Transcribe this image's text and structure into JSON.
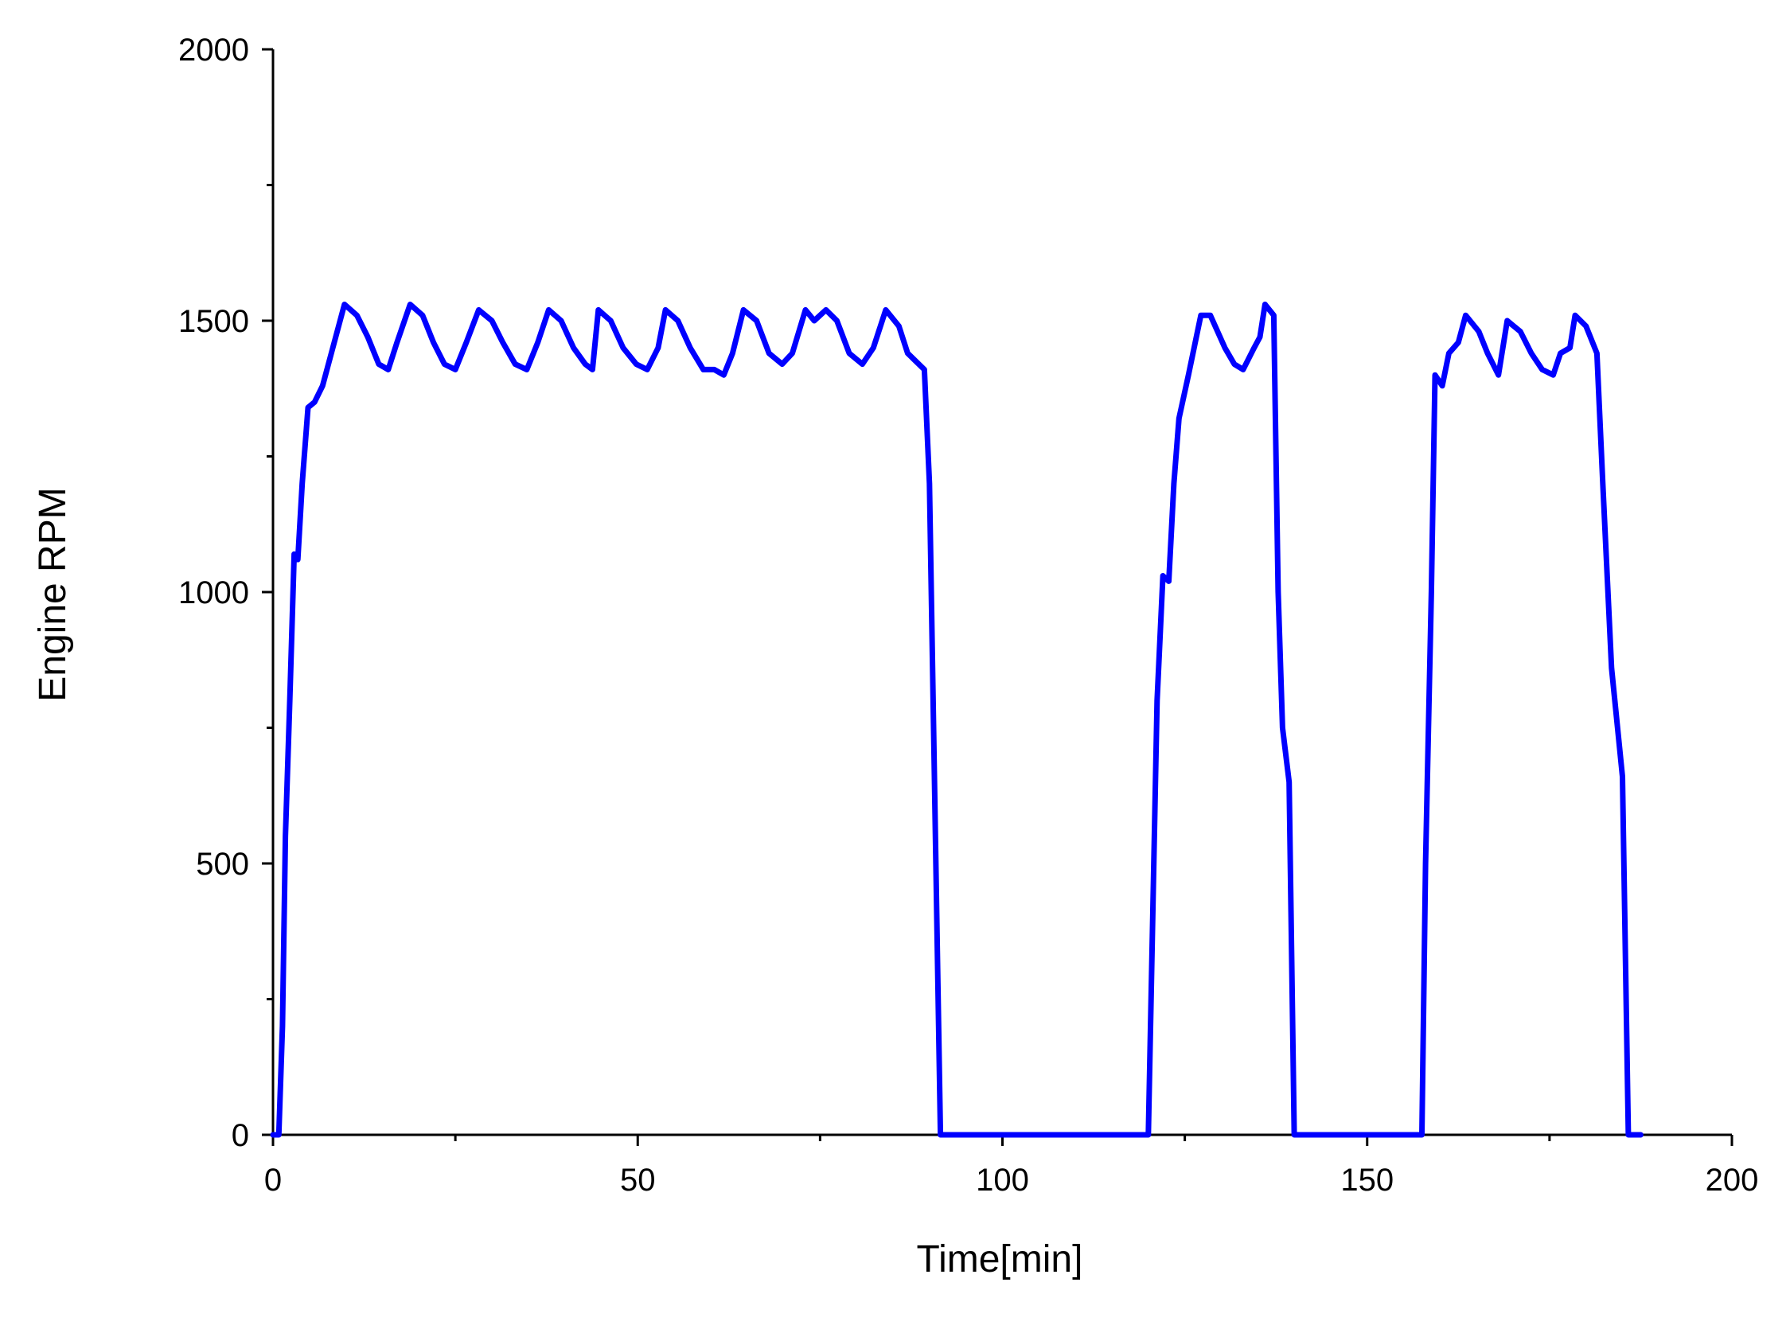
{
  "chart_data": {
    "type": "line",
    "title": "",
    "xlabel": "Time[min]",
    "ylabel": "Engine RPM",
    "xlim": [
      0,
      200
    ],
    "ylim": [
      0,
      2000
    ],
    "x_ticks": [
      0,
      50,
      100,
      150,
      200
    ],
    "x_tick_labels": [
      "0",
      "50",
      "100",
      "150",
      "200"
    ],
    "x_minor_step": 25,
    "y_ticks": [
      0,
      500,
      1000,
      1500,
      2000
    ],
    "y_tick_labels": [
      "0",
      "500",
      "1000",
      "1500",
      "2000"
    ],
    "y_minor_step": 250,
    "grid": false,
    "legend": "none",
    "series": [
      {
        "color": "#0000ff",
        "points": [
          [
            0,
            0
          ],
          [
            0.8,
            0
          ],
          [
            1.3,
            200
          ],
          [
            1.7,
            550
          ],
          [
            2.3,
            800
          ],
          [
            2.9,
            1070
          ],
          [
            3.4,
            1060
          ],
          [
            4.0,
            1200
          ],
          [
            4.8,
            1340
          ],
          [
            5.7,
            1350
          ],
          [
            6.8,
            1380
          ],
          [
            8.0,
            1440
          ],
          [
            9.8,
            1530
          ],
          [
            11.5,
            1510
          ],
          [
            13.0,
            1470
          ],
          [
            14.5,
            1420
          ],
          [
            15.8,
            1410
          ],
          [
            17.0,
            1460
          ],
          [
            18.8,
            1530
          ],
          [
            20.5,
            1510
          ],
          [
            22.0,
            1460
          ],
          [
            23.5,
            1420
          ],
          [
            25.0,
            1410
          ],
          [
            26.5,
            1460
          ],
          [
            28.2,
            1520
          ],
          [
            30.0,
            1500
          ],
          [
            31.5,
            1460
          ],
          [
            33.2,
            1420
          ],
          [
            34.8,
            1410
          ],
          [
            36.3,
            1460
          ],
          [
            37.8,
            1520
          ],
          [
            39.5,
            1500
          ],
          [
            41.2,
            1450
          ],
          [
            42.8,
            1420
          ],
          [
            43.8,
            1410
          ],
          [
            44.6,
            1520
          ],
          [
            46.3,
            1500
          ],
          [
            48.0,
            1450
          ],
          [
            49.8,
            1420
          ],
          [
            51.3,
            1410
          ],
          [
            52.8,
            1450
          ],
          [
            53.8,
            1520
          ],
          [
            55.5,
            1500
          ],
          [
            57.2,
            1450
          ],
          [
            59.0,
            1410
          ],
          [
            60.5,
            1410
          ],
          [
            61.8,
            1400
          ],
          [
            63.0,
            1440
          ],
          [
            64.5,
            1520
          ],
          [
            66.3,
            1500
          ],
          [
            68.0,
            1440
          ],
          [
            69.8,
            1420
          ],
          [
            71.2,
            1440
          ],
          [
            73.0,
            1520
          ],
          [
            74.2,
            1500
          ],
          [
            75.8,
            1520
          ],
          [
            77.3,
            1500
          ],
          [
            79.0,
            1440
          ],
          [
            80.8,
            1420
          ],
          [
            82.3,
            1450
          ],
          [
            84.0,
            1520
          ],
          [
            85.8,
            1490
          ],
          [
            87.0,
            1440
          ],
          [
            89.3,
            1410
          ],
          [
            90.0,
            1200
          ],
          [
            90.5,
            800
          ],
          [
            91.0,
            400
          ],
          [
            91.5,
            0
          ],
          [
            120.0,
            0
          ],
          [
            120.6,
            400
          ],
          [
            121.2,
            800
          ],
          [
            122.0,
            1030
          ],
          [
            122.8,
            1020
          ],
          [
            123.5,
            1200
          ],
          [
            124.2,
            1320
          ],
          [
            125.5,
            1400
          ],
          [
            127.2,
            1510
          ],
          [
            128.5,
            1510
          ],
          [
            130.5,
            1450
          ],
          [
            131.8,
            1420
          ],
          [
            133.0,
            1410
          ],
          [
            134.5,
            1450
          ],
          [
            135.3,
            1470
          ],
          [
            136.0,
            1530
          ],
          [
            137.2,
            1510
          ],
          [
            137.8,
            1000
          ],
          [
            138.4,
            750
          ],
          [
            139.3,
            650
          ],
          [
            140.0,
            0
          ],
          [
            157.5,
            0
          ],
          [
            158.0,
            500
          ],
          [
            158.8,
            1000
          ],
          [
            159.3,
            1400
          ],
          [
            160.3,
            1380
          ],
          [
            161.2,
            1440
          ],
          [
            162.5,
            1460
          ],
          [
            163.5,
            1510
          ],
          [
            165.3,
            1480
          ],
          [
            166.5,
            1440
          ],
          [
            168.0,
            1400
          ],
          [
            169.2,
            1500
          ],
          [
            171.0,
            1480
          ],
          [
            172.5,
            1440
          ],
          [
            174.0,
            1410
          ],
          [
            175.5,
            1400
          ],
          [
            176.5,
            1440
          ],
          [
            177.8,
            1450
          ],
          [
            178.5,
            1510
          ],
          [
            180.0,
            1490
          ],
          [
            181.5,
            1440
          ],
          [
            182.3,
            1200
          ],
          [
            183.5,
            860
          ],
          [
            185.0,
            660
          ],
          [
            185.8,
            0
          ],
          [
            187.5,
            0
          ]
        ]
      }
    ]
  }
}
